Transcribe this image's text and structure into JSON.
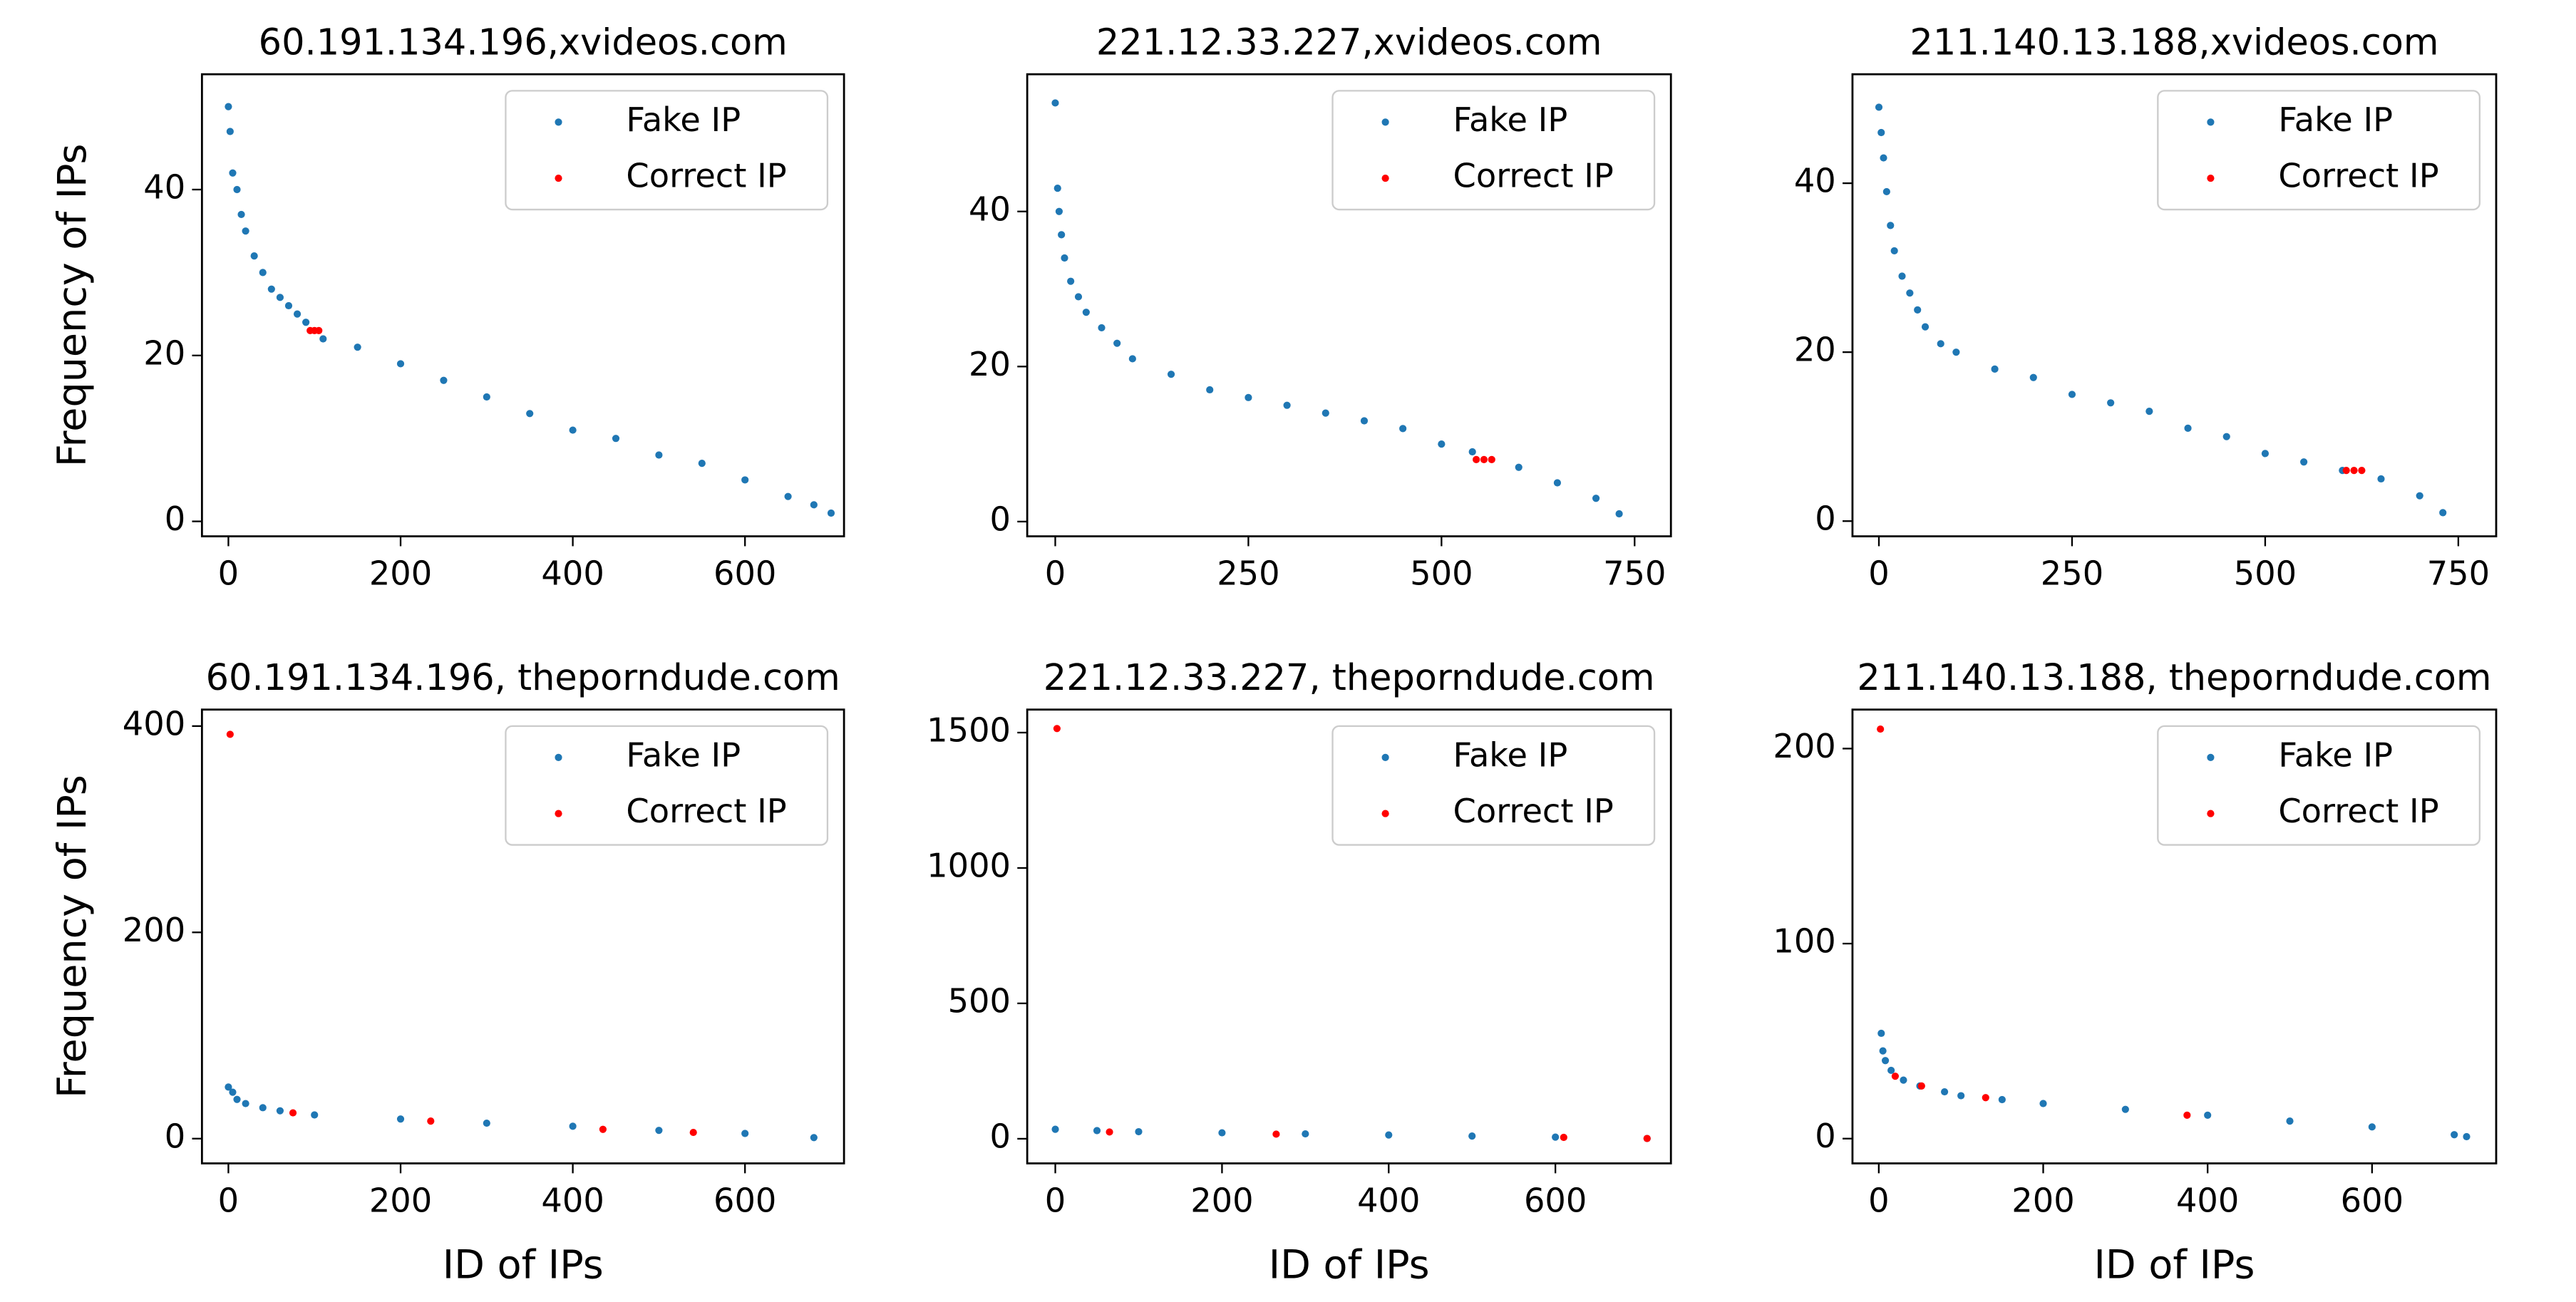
{
  "chart_data": [
    {
      "type": "scatter",
      "title": "60.191.134.196,xvideos.com",
      "ylabel": "Frequency of IPs",
      "legend": "upper right",
      "xlim": [
        -30.7,
        715
      ],
      "ylim": [
        -1.8,
        53.9
      ],
      "xticks": [
        0,
        200,
        400,
        600
      ],
      "yticks": [
        0,
        20,
        40
      ],
      "series": [
        {
          "name": "Fake IP",
          "color": "#1f77b4",
          "x": [
            0,
            2,
            5,
            10,
            15,
            20,
            30,
            40,
            50,
            60,
            70,
            80,
            90,
            110,
            150,
            200,
            250,
            300,
            350,
            400,
            450,
            500,
            550,
            600,
            650,
            680,
            700
          ],
          "values": [
            50,
            47,
            42,
            40,
            37,
            35,
            32,
            30,
            28,
            27,
            26,
            25,
            24,
            22,
            21,
            19,
            17,
            15,
            13,
            11,
            10,
            8,
            7,
            5,
            3,
            2,
            1
          ]
        },
        {
          "name": "Correct IP",
          "color": "#ff0000",
          "x": [
            95,
            100,
            105
          ],
          "values": [
            23,
            23,
            23
          ]
        }
      ]
    },
    {
      "type": "scatter",
      "title": "221.12.33.227,xvideos.com",
      "legend": "upper right",
      "xlim": [
        -36.3,
        797
      ],
      "ylim": [
        -1.9,
        57.7
      ],
      "xticks": [
        0,
        250,
        500,
        750
      ],
      "yticks": [
        0,
        20,
        40
      ],
      "series": [
        {
          "name": "Fake IP",
          "color": "#1f77b4",
          "x": [
            0,
            3,
            5,
            8,
            12,
            20,
            30,
            40,
            60,
            80,
            100,
            150,
            200,
            250,
            300,
            350,
            400,
            450,
            500,
            540,
            600,
            650,
            700,
            730
          ],
          "values": [
            54,
            43,
            40,
            37,
            34,
            31,
            29,
            27,
            25,
            23,
            21,
            19,
            17,
            16,
            15,
            14,
            13,
            12,
            10,
            9,
            7,
            5,
            3,
            1
          ]
        },
        {
          "name": "Correct IP",
          "color": "#ff0000",
          "x": [
            545,
            555,
            565
          ],
          "values": [
            8,
            8,
            8
          ]
        }
      ]
    },
    {
      "type": "scatter",
      "title": "211.140.13.188,xvideos.com",
      "legend": "upper right",
      "xlim": [
        -34.2,
        799
      ],
      "ylim": [
        -1.8,
        52.9
      ],
      "xticks": [
        0,
        250,
        500,
        750
      ],
      "yticks": [
        0,
        20,
        40
      ],
      "series": [
        {
          "name": "Fake IP",
          "color": "#1f77b4",
          "x": [
            0,
            3,
            6,
            10,
            15,
            20,
            30,
            40,
            50,
            60,
            80,
            100,
            150,
            200,
            250,
            300,
            350,
            400,
            450,
            500,
            550,
            600,
            650,
            700,
            730
          ],
          "values": [
            49,
            46,
            43,
            39,
            35,
            32,
            29,
            27,
            25,
            23,
            21,
            20,
            18,
            17,
            15,
            14,
            13,
            11,
            10,
            8,
            7,
            6,
            5,
            3,
            1
          ]
        },
        {
          "name": "Correct IP",
          "color": "#ff0000",
          "x": [
            605,
            615,
            625
          ],
          "values": [
            6,
            6,
            6
          ]
        }
      ]
    },
    {
      "type": "scatter",
      "title": "60.191.134.196, theporndude.com",
      "xlabel": "ID of IPs",
      "ylabel": "Frequency of IPs",
      "legend": "upper right",
      "xlim": [
        -30.7,
        715
      ],
      "ylim": [
        -24,
        416
      ],
      "xticks": [
        0,
        200,
        400,
        600
      ],
      "yticks": [
        0,
        200,
        400
      ],
      "series": [
        {
          "name": "Fake IP",
          "color": "#1f77b4",
          "x": [
            0,
            5,
            10,
            20,
            40,
            60,
            100,
            200,
            300,
            400,
            500,
            600,
            680
          ],
          "values": [
            50,
            45,
            38,
            34,
            30,
            27,
            23,
            19,
            15,
            12,
            8,
            5,
            1
          ]
        },
        {
          "name": "Correct IP",
          "color": "#ff0000",
          "x": [
            2,
            75,
            235,
            435,
            540
          ],
          "values": [
            392,
            25,
            17,
            9,
            6
          ]
        }
      ]
    },
    {
      "type": "scatter",
      "title": "221.12.33.227, theporndude.com",
      "xlabel": "ID of IPs",
      "legend": "upper right",
      "xlim": [
        -33.7,
        738.6
      ],
      "ylim": [
        -91,
        1585
      ],
      "xticks": [
        0,
        200,
        400,
        600
      ],
      "yticks": [
        0,
        500,
        1000,
        1500
      ],
      "series": [
        {
          "name": "Fake IP",
          "color": "#1f77b4",
          "x": [
            0,
            50,
            100,
            200,
            300,
            400,
            500,
            600,
            710
          ],
          "values": [
            35,
            30,
            26,
            22,
            18,
            14,
            10,
            6,
            1
          ]
        },
        {
          "name": "Correct IP",
          "color": "#ff0000",
          "x": [
            2,
            65,
            265,
            610,
            710
          ],
          "values": [
            1515,
            25,
            17,
            5,
            1
          ]
        }
      ]
    },
    {
      "type": "scatter",
      "title": "211.140.13.188, theporndude.com",
      "xlabel": "ID of IPs",
      "legend": "upper right",
      "xlim": [
        -32,
        751
      ],
      "ylim": [
        -12.7,
        220
      ],
      "xticks": [
        0,
        200,
        400,
        600
      ],
      "yticks": [
        0,
        100,
        200
      ],
      "series": [
        {
          "name": "Fake IP",
          "color": "#1f77b4",
          "x": [
            3,
            5,
            8,
            15,
            30,
            50,
            80,
            100,
            150,
            200,
            300,
            400,
            500,
            600,
            700,
            715
          ],
          "values": [
            54,
            45,
            40,
            35,
            30,
            27,
            24,
            22,
            20,
            18,
            15,
            12,
            9,
            6,
            2,
            1
          ]
        },
        {
          "name": "Correct IP",
          "color": "#ff0000",
          "x": [
            2,
            20,
            52,
            130,
            375
          ],
          "values": [
            210,
            32,
            27,
            21,
            12
          ]
        }
      ]
    }
  ]
}
